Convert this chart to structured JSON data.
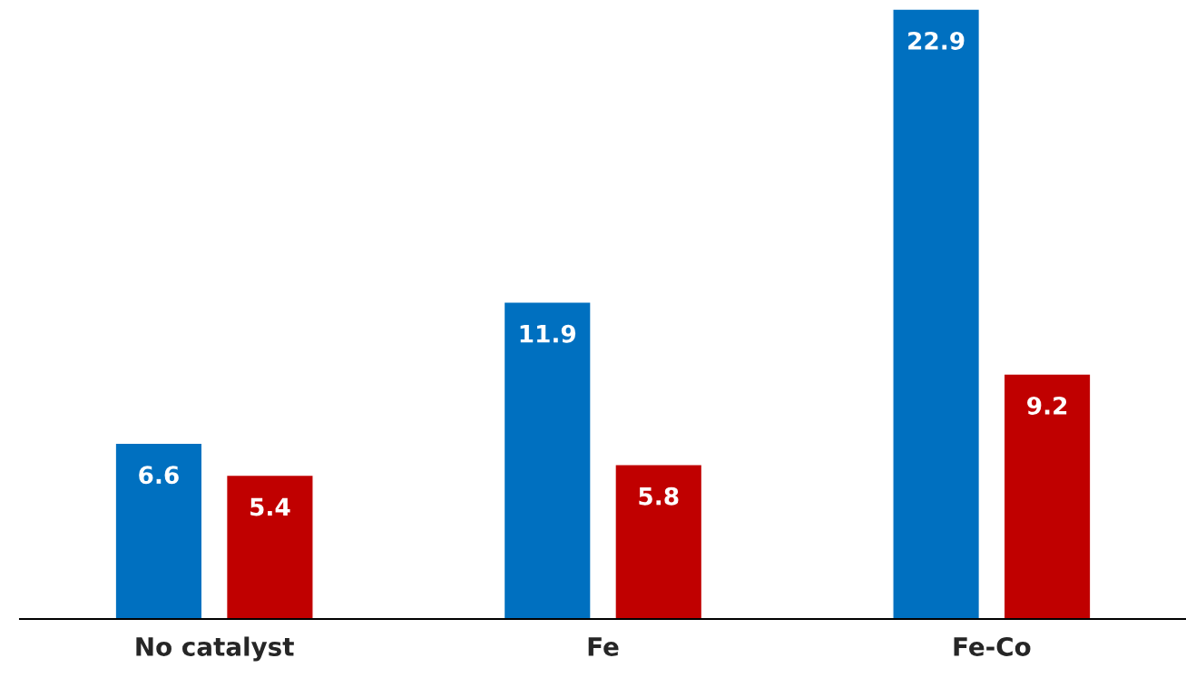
{
  "chart_data": {
    "type": "bar",
    "categories": [
      "No catalyst",
      "Fe",
      "Fe-Co"
    ],
    "series": [
      {
        "color": "#0070c0",
        "values": [
          6.6,
          11.9,
          22.9
        ]
      },
      {
        "color": "#c00000",
        "values": [
          5.4,
          5.8,
          9.2
        ]
      }
    ],
    "data_labels": true,
    "grid": false,
    "legend": false
  }
}
